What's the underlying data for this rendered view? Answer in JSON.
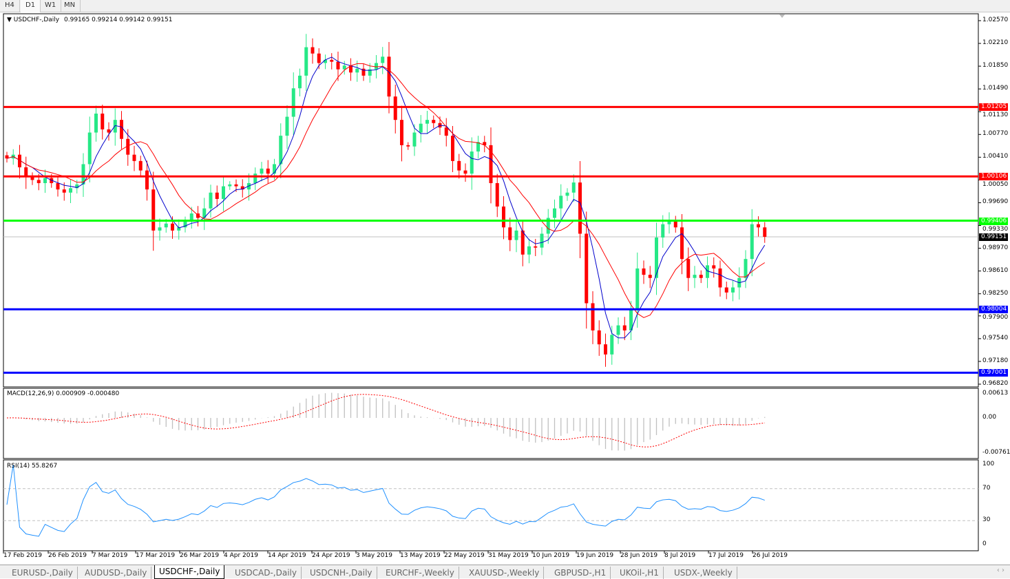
{
  "timeframes": [
    {
      "label": "H4"
    },
    {
      "label": "D1",
      "active": true
    },
    {
      "label": "W1"
    },
    {
      "label": "MN"
    }
  ],
  "chart": {
    "symbol": "USDCHF-,Daily",
    "ohlc": "0.99165 0.99214 0.99142 0.99151",
    "price_ticks": [
      "1.02570",
      "1.02210",
      "1.01850",
      "1.01490",
      "1.01130",
      "1.00770",
      "1.00410",
      "1.00050",
      "0.99690",
      "0.99330",
      "0.98970",
      "0.98610",
      "0.98250",
      "0.97900",
      "0.97540",
      "0.97180",
      "0.96820"
    ],
    "levels": [
      {
        "price": "1.01205",
        "color": "#ff0000"
      },
      {
        "price": "1.00106",
        "color": "#ff0000"
      },
      {
        "price": "0.99406",
        "color": "#00ff00"
      },
      {
        "price": "0.98004",
        "color": "#0000ff"
      },
      {
        "price": "0.97001",
        "color": "#0000ff"
      }
    ],
    "current_price": "0.99151",
    "colors": {
      "bull": "#26e886",
      "bear": "#ff0000",
      "ma_fast": "#0000cc",
      "ma_slow": "#ff0000"
    },
    "dates": [
      "17 Feb 2019",
      "26 Feb 2019",
      "7 Mar 2019",
      "17 Mar 2019",
      "26 Mar 2019",
      "4 Apr 2019",
      "14 Apr 2019",
      "24 Apr 2019",
      "3 May 2019",
      "13 May 2019",
      "22 May 2019",
      "31 May 2019",
      "10 Jun 2019",
      "19 Jun 2019",
      "28 Jun 2019",
      "8 Jul 2019",
      "17 Jul 2019",
      "26 Jul 2019"
    ]
  },
  "chart_data": {
    "type": "candlestick",
    "closes": [
      1.0039,
      1.0045,
      1.0025,
      1.001,
      1.0005,
      1.0,
      1.0008,
      1.0,
      0.999,
      0.9985,
      0.9992,
      0.9998,
      1.003,
      1.008,
      1.011,
      1.0085,
      1.008,
      1.01,
      1.007,
      1.0045,
      1.0035,
      1.002,
      0.999,
      0.9925,
      0.993,
      0.9936,
      0.9925,
      0.993,
      0.994,
      0.9952,
      0.9945,
      0.996,
      0.9985,
      0.9975,
      0.9995,
      0.9998,
      0.9995,
      0.999,
      1.0,
      1.0015,
      1.0023,
      1.0015,
      1.003,
      1.0075,
      1.0105,
      1.015,
      1.017,
      1.0215,
      1.0205,
      1.019,
      1.0195,
      1.0192,
      1.018,
      1.0186,
      1.0175,
      1.0181,
      1.017,
      1.018,
      1.019,
      1.02,
      1.0137,
      1.01,
      1.006,
      1.0058,
      1.008,
      1.0094,
      1.01,
      1.0095,
      1.0088,
      1.0075,
      1.0035,
      1.002,
      1.0015,
      1.005,
      1.0065,
      1.006,
      1.0,
      0.9963,
      0.993,
      0.991,
      0.9925,
      0.9887,
      0.99,
      0.9898,
      0.992,
      0.9945,
      0.996,
      0.998,
      0.9985,
      1.0001,
      0.992,
      0.981,
      0.9767,
      0.9745,
      0.9729,
      0.976,
      0.9775,
      0.9767,
      0.98,
      0.9865,
      0.9855,
      0.985,
      0.9914,
      0.9935,
      0.9941,
      0.993,
      0.988,
      0.985,
      0.9855,
      0.985,
      0.987,
      0.9865,
      0.9835,
      0.9827,
      0.9835,
      0.985,
      0.988,
      0.9935,
      0.993,
      0.99151
    ],
    "ylim": [
      0.9682,
      1.0257
    ]
  },
  "macd": {
    "title": "MACD(12,26,9) 0.000909 -0.000480",
    "ticks": [
      "0.00613",
      "0.00",
      "-0.007612"
    ],
    "ylim": [
      -0.007612,
      0.00613
    ]
  },
  "rsi": {
    "title": "RSI(14) 55.8267",
    "ticks": [
      "100",
      "70",
      "30",
      "0"
    ],
    "levels": [
      70,
      30
    ]
  },
  "tabs": [
    {
      "label": "EURUSD-,Daily"
    },
    {
      "label": "AUDUSD-,Daily"
    },
    {
      "label": "USDCHF-,Daily",
      "active": true
    },
    {
      "label": "USDCAD-,Daily"
    },
    {
      "label": "USDCNH-,Daily"
    },
    {
      "label": "EURCHF-,Weekly"
    },
    {
      "label": "XAUUSD-,Weekly"
    },
    {
      "label": "GBPUSD-,H1"
    },
    {
      "label": "UKOil-,H1"
    },
    {
      "label": "USDX-,Weekly"
    }
  ],
  "scroll_arrows": "‹ ›"
}
